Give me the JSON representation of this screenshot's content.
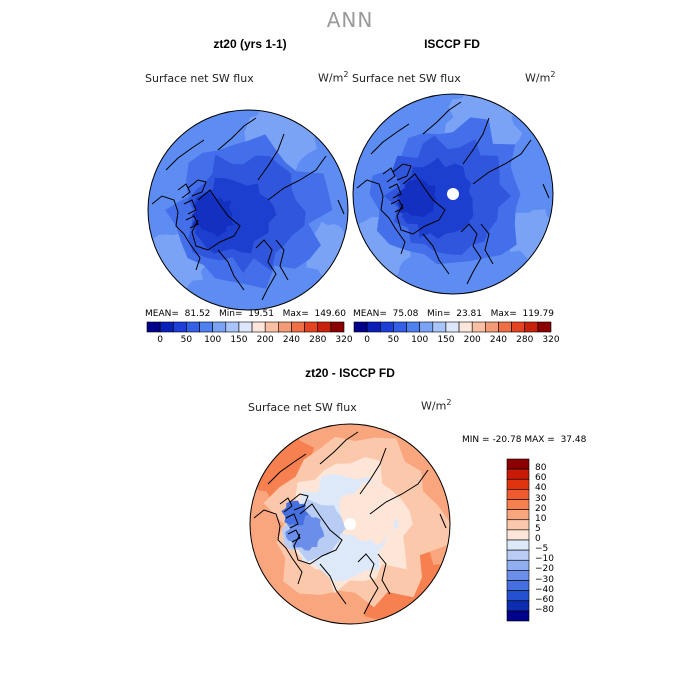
{
  "main_title": "ANN",
  "panels": [
    {
      "title": "zt20 (yrs 1-1)",
      "variable": "Surface net SW flux",
      "unit_base": "W/m",
      "unit_exp": "2",
      "stats": {
        "mean_label": "MEAN=",
        "mean": "81.52",
        "min_label": "Min=",
        "min": "19.51",
        "max_label": "Max=",
        "max": "149.60"
      }
    },
    {
      "title": "ISCCP FD",
      "variable": "Surface net SW flux",
      "unit_base": "W/m",
      "unit_exp": "2",
      "stats": {
        "mean_label": "MEAN=",
        "mean": "75.08",
        "min_label": "Min=",
        "min": "23.81",
        "max_label": "Max=",
        "max": "119.79"
      }
    },
    {
      "title": "zt20 - ISCCP FD",
      "variable": "Surface net SW flux",
      "unit_base": "W/m",
      "unit_exp": "2",
      "stats": {
        "min_label": "MIN =",
        "min": "-20.78",
        "max_label": "MAX =",
        "max": "37.48"
      }
    }
  ],
  "chart_data": [
    {
      "type": "heatmap",
      "title": "zt20 (yrs 1-1)",
      "subtitle": "Surface net SW flux",
      "projection": "north polar stereographic",
      "colorbar": {
        "orientation": "horizontal",
        "tick_labels": [
          "0",
          "50",
          "100",
          "150",
          "200",
          "240",
          "280",
          "320"
        ],
        "colors": [
          "#00008b",
          "#0a1fb8",
          "#1c3fd8",
          "#3360e6",
          "#4f80f0",
          "#7aa2f5",
          "#a9c4f8",
          "#dde6fb",
          "#fde6dc",
          "#f8bfa4",
          "#f49a76",
          "#ef6f47",
          "#e44421",
          "#c9220c",
          "#8b0000"
        ]
      },
      "stats": {
        "mean": 81.52,
        "min": 19.51,
        "max": 149.6
      }
    },
    {
      "type": "heatmap",
      "title": "ISCCP FD",
      "subtitle": "Surface net SW flux",
      "projection": "north polar stereographic",
      "colorbar": {
        "orientation": "horizontal",
        "tick_labels": [
          "0",
          "50",
          "100",
          "150",
          "200",
          "240",
          "280",
          "320"
        ],
        "colors": [
          "#00008b",
          "#0a1fb8",
          "#1c3fd8",
          "#3360e6",
          "#4f80f0",
          "#7aa2f5",
          "#a9c4f8",
          "#dde6fb",
          "#fde6dc",
          "#f8bfa4",
          "#f49a76",
          "#ef6f47",
          "#e44421",
          "#c9220c",
          "#8b0000"
        ]
      },
      "stats": {
        "mean": 75.08,
        "min": 23.81,
        "max": 119.79
      }
    },
    {
      "type": "heatmap",
      "title": "zt20 - ISCCP FD",
      "subtitle": "Surface net SW flux",
      "projection": "north polar stereographic",
      "colorbar": {
        "orientation": "vertical",
        "tick_labels": [
          "80",
          "60",
          "40",
          "30",
          "20",
          "10",
          "5",
          "0",
          "−5",
          "−10",
          "−20",
          "−30",
          "−40",
          "−60",
          "−80"
        ],
        "colors": [
          "#8b0000",
          "#c81a06",
          "#e0340f",
          "#ef5a2e",
          "#f68050",
          "#f9a57d",
          "#fbc8ab",
          "#fde6d8",
          "#dde8f8",
          "#b9cdf4",
          "#90aef0",
          "#6a8eea",
          "#4670e0",
          "#2450d2",
          "#0c2db0",
          "#00008b"
        ]
      },
      "stats": {
        "min": -20.78,
        "max": 37.48
      }
    }
  ]
}
